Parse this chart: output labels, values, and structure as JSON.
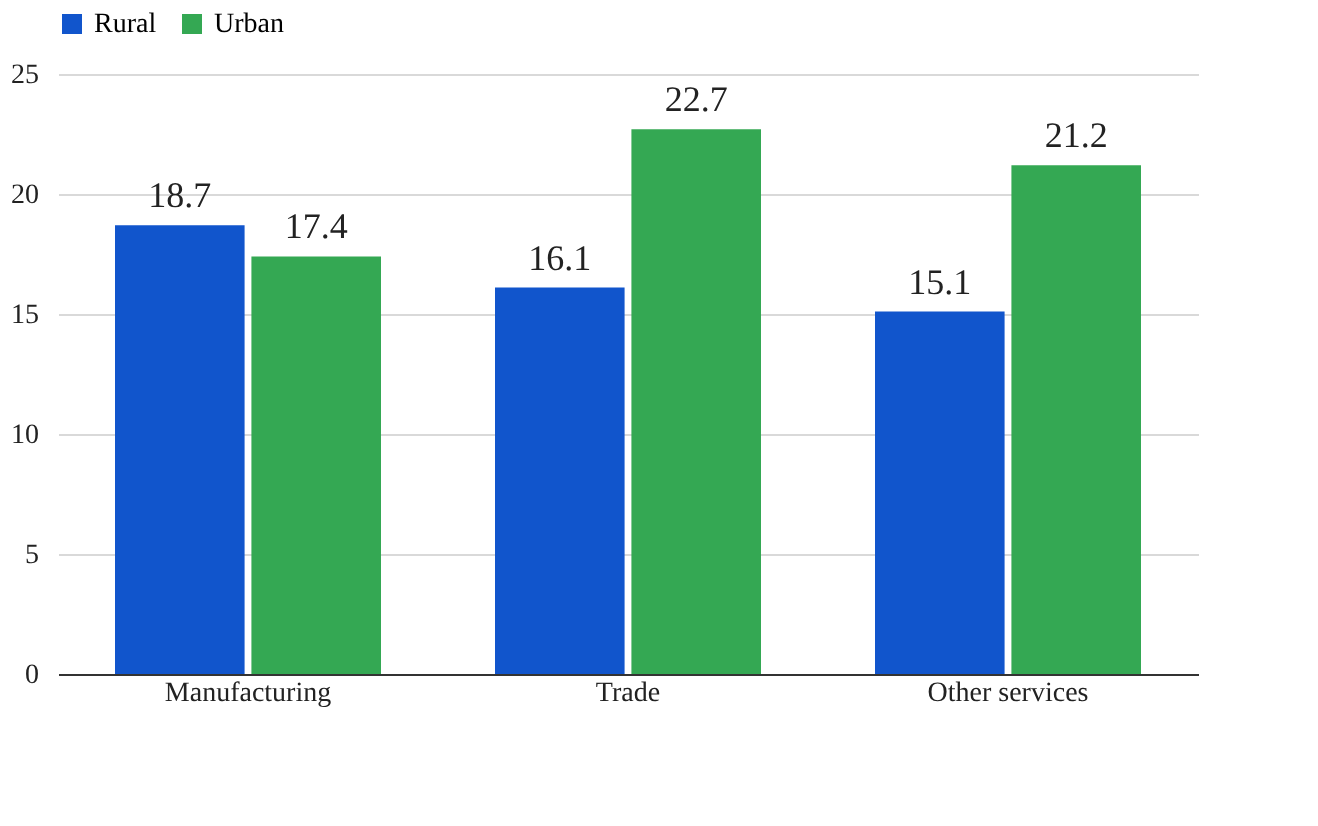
{
  "chart_data": {
    "type": "bar",
    "categories": [
      "Manufacturing",
      "Trade",
      "Other services"
    ],
    "series": [
      {
        "name": "Rural",
        "color": "#1155cc",
        "values": [
          18.7,
          16.1,
          15.1
        ]
      },
      {
        "name": "Urban",
        "color": "#34a853",
        "values": [
          17.4,
          22.7,
          21.2
        ]
      }
    ],
    "ylim": [
      0,
      25
    ],
    "yticks": [
      0,
      5,
      10,
      15,
      20,
      25
    ],
    "grid": "y",
    "legend": "top",
    "data_labels": true
  }
}
